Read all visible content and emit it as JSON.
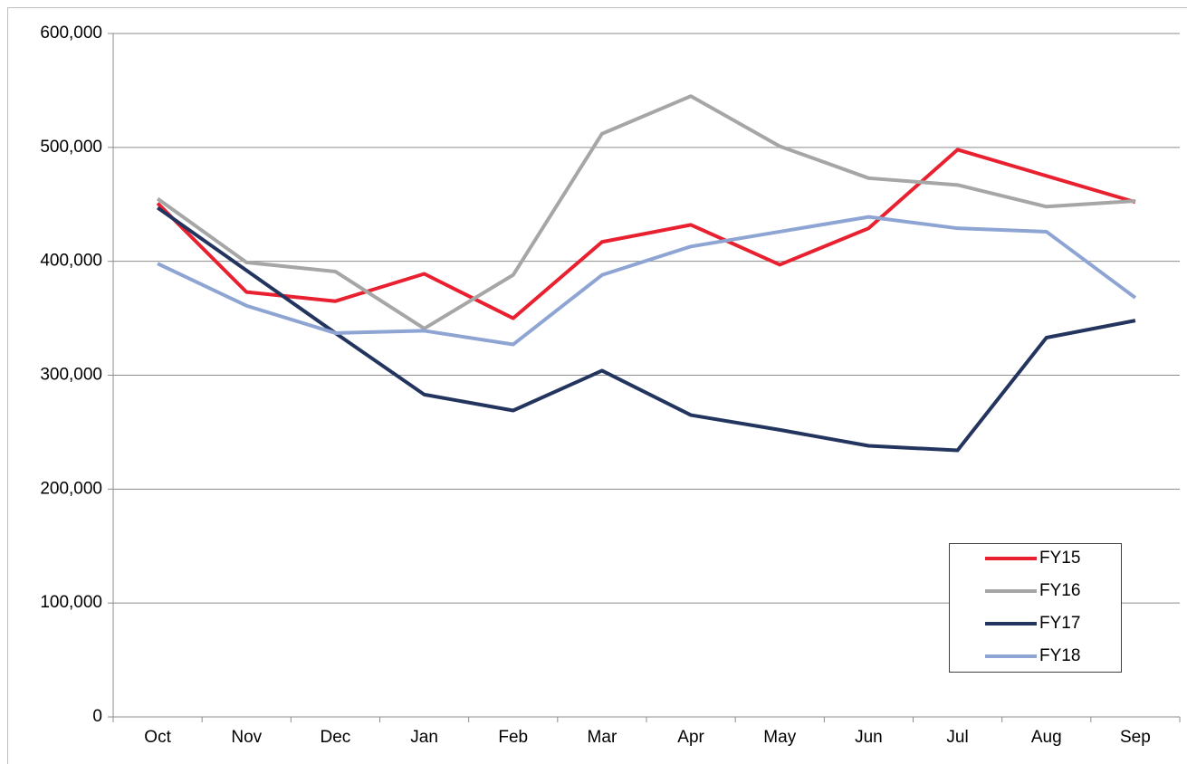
{
  "chart_data": {
    "type": "line",
    "categories": [
      "Oct",
      "Nov",
      "Dec",
      "Jan",
      "Feb",
      "Mar",
      "Apr",
      "May",
      "Jun",
      "Jul",
      "Aug",
      "Sep"
    ],
    "series": [
      {
        "name": "FY15",
        "color": "#e8202f",
        "values": [
          451000,
          373000,
          365000,
          389000,
          350000,
          417000,
          432000,
          397000,
          429000,
          498000,
          475000,
          452000
        ]
      },
      {
        "name": "FY16",
        "color": "#a6a6a6",
        "values": [
          455000,
          399000,
          391000,
          341000,
          388000,
          512000,
          545000,
          501000,
          473000,
          467000,
          448000,
          453000
        ]
      },
      {
        "name": "FY17",
        "color": "#23355f",
        "values": [
          447000,
          392000,
          337000,
          283000,
          269000,
          304000,
          265000,
          252000,
          238000,
          234000,
          333000,
          348000
        ]
      },
      {
        "name": "FY18",
        "color": "#8ea5d3",
        "values": [
          398000,
          361000,
          337000,
          339000,
          327000,
          388000,
          413000,
          426000,
          439000,
          429000,
          426000,
          368000
        ]
      }
    ],
    "ylim": [
      0,
      600000
    ],
    "yticks": [
      0,
      {
        "value": 100000,
        "label": "100,000"
      },
      {
        "value": 200000,
        "label": "200,000"
      },
      {
        "value": 300000,
        "label": "300,000"
      },
      {
        "value": 400000,
        "label": "400,000"
      },
      {
        "value": 500000,
        "label": "500,000"
      },
      {
        "value": 600000,
        "label": "600,000"
      }
    ],
    "grid": true,
    "legend": "right"
  }
}
